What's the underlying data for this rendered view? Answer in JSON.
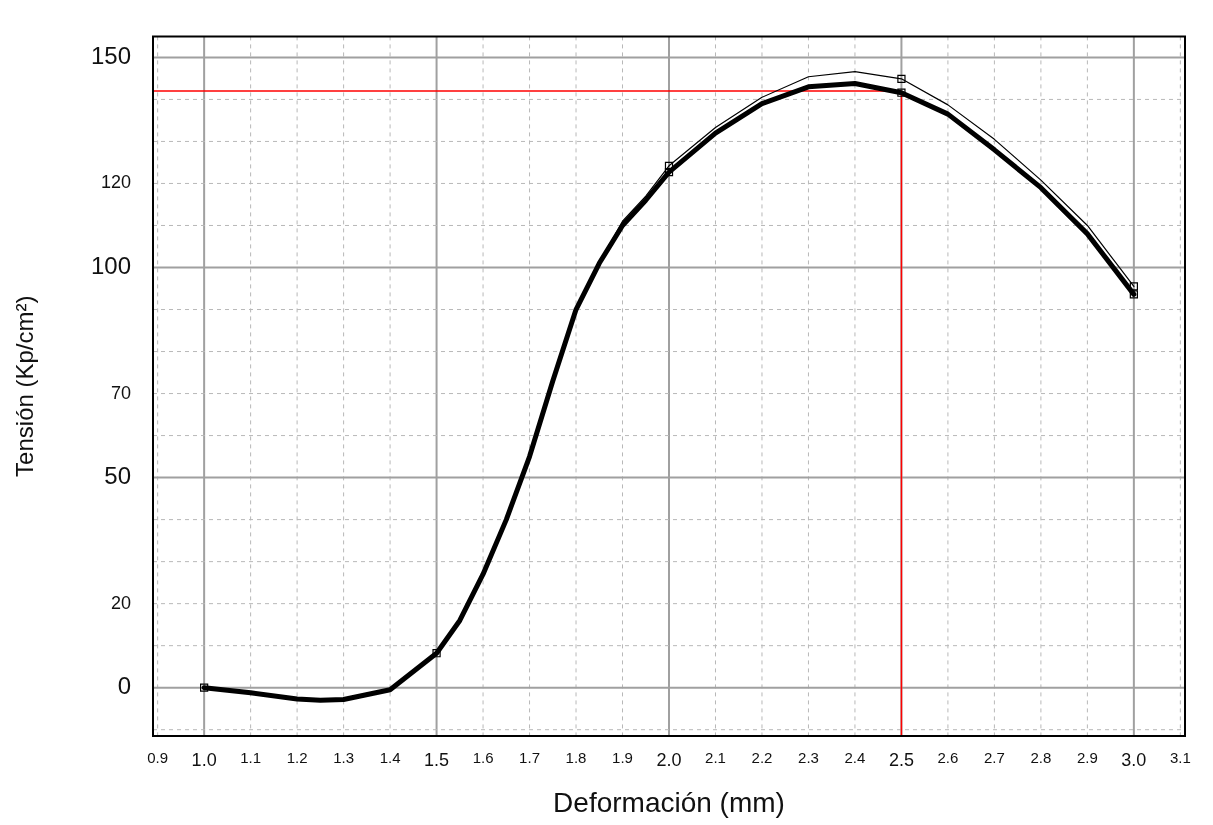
{
  "chart_data": {
    "type": "line",
    "xlabel": "Deformación (mm)",
    "ylabel": "Tensión (Kp/cm²)",
    "xlim": [
      0.89,
      3.11
    ],
    "ylim": [
      -11.5,
      155
    ],
    "xticks": [
      0.9,
      {
        "value": 1,
        "label": "1.0"
      },
      1.1,
      1.2,
      1.3,
      1.4,
      1.5,
      1.6,
      1.7,
      1.8,
      1.9,
      {
        "value": 2,
        "label": "2.0"
      },
      2.1,
      2.2,
      2.3,
      2.4,
      2.5,
      2.6,
      2.7,
      2.8,
      2.9,
      {
        "value": 3,
        "label": "3.0"
      },
      3.1
    ],
    "yticks": [
      {
        "value": -10,
        "label": null
      },
      0,
      {
        "value": 10,
        "label": null
      },
      20,
      {
        "value": 30,
        "label": null
      },
      {
        "value": 40,
        "label": null
      },
      50,
      {
        "value": 60,
        "label": null
      },
      70,
      {
        "value": 80,
        "label": null
      },
      {
        "value": 90,
        "label": null
      },
      100,
      {
        "value": 110,
        "label": null
      },
      120,
      {
        "value": 130,
        "label": null
      },
      {
        "value": 140,
        "label": null
      },
      150
    ],
    "grid": true,
    "legend": false,
    "ref_lines": [
      {
        "axis": "y",
        "value": 142,
        "color": "#ff0000"
      },
      {
        "axis": "x",
        "value": 2.5,
        "color": "#ff0000"
      }
    ],
    "series": [
      {
        "type": "line",
        "color": "#000000",
        "marker": "none",
        "x": [
          1,
          1.1,
          1.2,
          1.25,
          1.3,
          1.4,
          1.5,
          1.55,
          1.6,
          1.65,
          1.7,
          1.75,
          1.8,
          1.85,
          1.9,
          1.95,
          2,
          2.1,
          2.2,
          2.3,
          2.4,
          2.5,
          2.6,
          2.7,
          2.8,
          2.9,
          3
        ],
        "values": [
          0,
          -1.2,
          -2.7,
          -3,
          -2.8,
          -0.5,
          8.2,
          16,
          27,
          40,
          55,
          73,
          90,
          101,
          111,
          117,
          124.2,
          133.3,
          140.5,
          145.4,
          146.6,
          144.9,
          138.7,
          130.5,
          120.8,
          110,
          95.5
        ]
      },
      {
        "type": "line",
        "color": "#000000",
        "marker": "none",
        "x": [
          1,
          1.1,
          1.2,
          1.25,
          1.3,
          1.4,
          1.5,
          1.55,
          1.6,
          1.65,
          1.7,
          1.75,
          1.8,
          1.85,
          1.9,
          1.95,
          2,
          2.1,
          2.2,
          2.3,
          2.4,
          2.5,
          2.6,
          2.7,
          2.8,
          2.9,
          3
        ],
        "values": [
          0,
          -1.2,
          -2.7,
          -3,
          -2.8,
          -0.5,
          8.2,
          16,
          27,
          40,
          55,
          73,
          90,
          101,
          110,
          116,
          122.7,
          132,
          139,
          143,
          143.8,
          141.6,
          136.5,
          128,
          119,
          108,
          93.6
        ]
      },
      {
        "type": "scatter",
        "color": "#000000",
        "marker": "square",
        "x": [
          2,
          2.5,
          3
        ],
        "values": [
          124.2,
          144.9,
          95.5
        ]
      },
      {
        "type": "scatter",
        "color": "#000000",
        "marker": "square",
        "x": [
          1,
          1.5,
          2,
          2.5,
          3
        ],
        "values": [
          0,
          8.2,
          122.7,
          141.6,
          93.6
        ]
      }
    ]
  }
}
